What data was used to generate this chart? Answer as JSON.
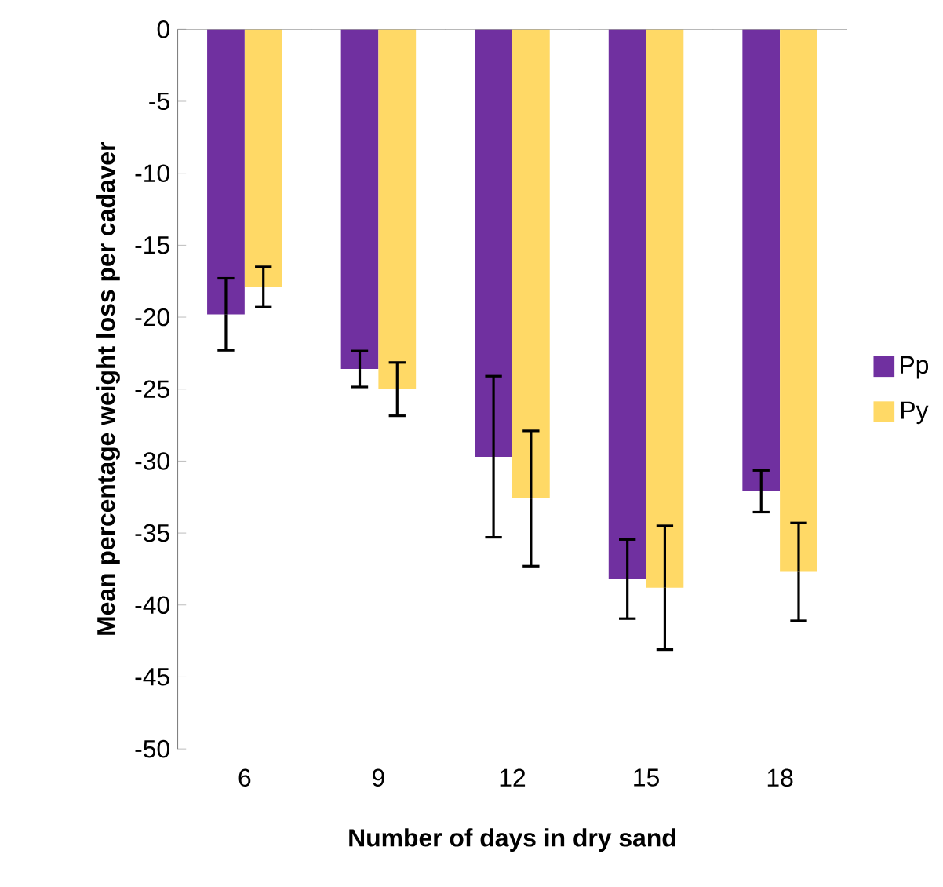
{
  "chart_data": {
    "type": "bar",
    "xlabel": "Number of days in dry sand",
    "ylabel": "Mean percentage weight loss per cadaver",
    "categories": [
      "6",
      "9",
      "12",
      "15",
      "18"
    ],
    "series": [
      {
        "name": "Pp",
        "color": "#7030a0",
        "values": [
          -19.8,
          -23.6,
          -29.7,
          -38.2,
          -32.1
        ],
        "errors": [
          2.5,
          1.25,
          5.6,
          2.75,
          1.45
        ]
      },
      {
        "name": "Py",
        "color": "#ffd966",
        "values": [
          -17.9,
          -25.0,
          -32.6,
          -38.8,
          -37.7
        ],
        "errors": [
          1.4,
          1.85,
          4.7,
          4.3,
          3.4
        ]
      }
    ],
    "ylim": [
      -50,
      0
    ],
    "yticks": [
      0,
      -5,
      -10,
      -15,
      -20,
      -25,
      -30,
      -35,
      -40,
      -45,
      -50
    ],
    "grid": false,
    "legend": "right"
  }
}
